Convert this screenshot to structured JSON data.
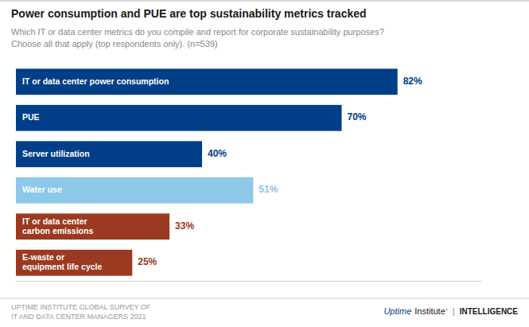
{
  "chart_data": {
    "type": "bar",
    "orientation": "horizontal",
    "title": "Power consumption and PUE are top sustainability metrics tracked",
    "subtitle": "Which IT or data center metrics do you compile and report for corporate sustainability purposes?\nChoose all that apply (top respondents only). (n=539)",
    "categories": [
      "IT or data center power consumption",
      "PUE",
      "Server utilization",
      "Water use",
      "IT or data center\ncarbon emissions",
      "E-waste or\nequipment life cycle"
    ],
    "values": [
      82,
      70,
      40,
      51,
      33,
      25
    ],
    "value_labels": [
      "82%",
      "70%",
      "40%",
      "51%",
      "33%",
      "25%"
    ],
    "colors": [
      "#003f87",
      "#003f87",
      "#003f87",
      "#8dc8e8",
      "#9b3a20",
      "#9b3a20"
    ],
    "data_labels": true,
    "xlim": [
      0,
      100
    ],
    "tick_labels": false,
    "grid": false,
    "annotations": [
      "UPTIME INSTITUTE GLOBAL SURVEY OF\nIT AND DATA CENTER MANAGERS 2021",
      "Uptime",
      "Institute",
      "ʼ",
      "|",
      "INTELLIGENCE"
    ]
  }
}
